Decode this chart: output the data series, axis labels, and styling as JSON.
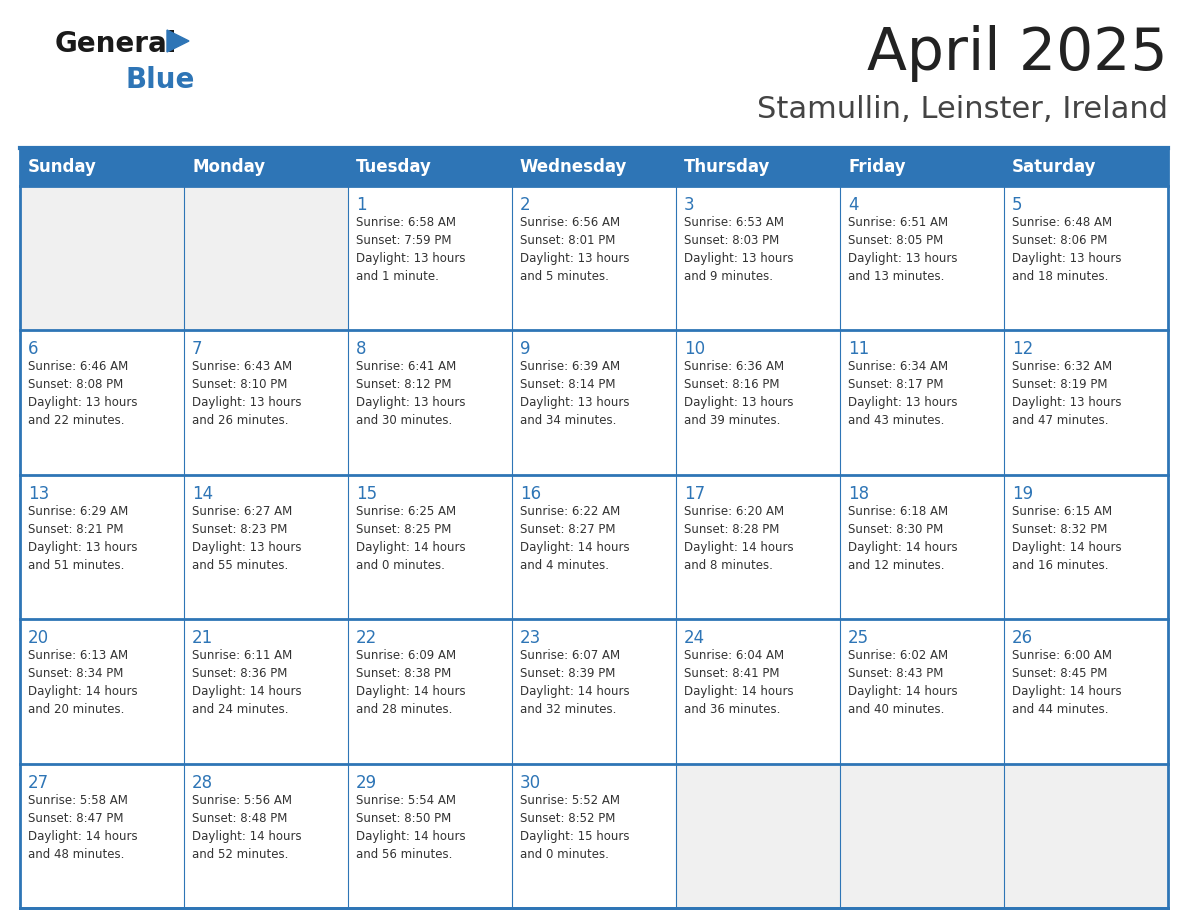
{
  "title": "April 2025",
  "subtitle": "Stamullin, Leinster, Ireland",
  "days_of_week": [
    "Sunday",
    "Monday",
    "Tuesday",
    "Wednesday",
    "Thursday",
    "Friday",
    "Saturday"
  ],
  "header_bg": "#2E75B6",
  "header_text_color": "#FFFFFF",
  "cell_bg_white": "#FFFFFF",
  "cell_bg_gray": "#F0F0F0",
  "cell_border_color": "#2E75B6",
  "day_number_color": "#2E75B6",
  "cell_text_color": "#333333",
  "title_color": "#222222",
  "subtitle_color": "#444444",
  "weeks": [
    [
      {
        "day": null,
        "text": ""
      },
      {
        "day": null,
        "text": ""
      },
      {
        "day": 1,
        "text": "Sunrise: 6:58 AM\nSunset: 7:59 PM\nDaylight: 13 hours\nand 1 minute."
      },
      {
        "day": 2,
        "text": "Sunrise: 6:56 AM\nSunset: 8:01 PM\nDaylight: 13 hours\nand 5 minutes."
      },
      {
        "day": 3,
        "text": "Sunrise: 6:53 AM\nSunset: 8:03 PM\nDaylight: 13 hours\nand 9 minutes."
      },
      {
        "day": 4,
        "text": "Sunrise: 6:51 AM\nSunset: 8:05 PM\nDaylight: 13 hours\nand 13 minutes."
      },
      {
        "day": 5,
        "text": "Sunrise: 6:48 AM\nSunset: 8:06 PM\nDaylight: 13 hours\nand 18 minutes."
      }
    ],
    [
      {
        "day": 6,
        "text": "Sunrise: 6:46 AM\nSunset: 8:08 PM\nDaylight: 13 hours\nand 22 minutes."
      },
      {
        "day": 7,
        "text": "Sunrise: 6:43 AM\nSunset: 8:10 PM\nDaylight: 13 hours\nand 26 minutes."
      },
      {
        "day": 8,
        "text": "Sunrise: 6:41 AM\nSunset: 8:12 PM\nDaylight: 13 hours\nand 30 minutes."
      },
      {
        "day": 9,
        "text": "Sunrise: 6:39 AM\nSunset: 8:14 PM\nDaylight: 13 hours\nand 34 minutes."
      },
      {
        "day": 10,
        "text": "Sunrise: 6:36 AM\nSunset: 8:16 PM\nDaylight: 13 hours\nand 39 minutes."
      },
      {
        "day": 11,
        "text": "Sunrise: 6:34 AM\nSunset: 8:17 PM\nDaylight: 13 hours\nand 43 minutes."
      },
      {
        "day": 12,
        "text": "Sunrise: 6:32 AM\nSunset: 8:19 PM\nDaylight: 13 hours\nand 47 minutes."
      }
    ],
    [
      {
        "day": 13,
        "text": "Sunrise: 6:29 AM\nSunset: 8:21 PM\nDaylight: 13 hours\nand 51 minutes."
      },
      {
        "day": 14,
        "text": "Sunrise: 6:27 AM\nSunset: 8:23 PM\nDaylight: 13 hours\nand 55 minutes."
      },
      {
        "day": 15,
        "text": "Sunrise: 6:25 AM\nSunset: 8:25 PM\nDaylight: 14 hours\nand 0 minutes."
      },
      {
        "day": 16,
        "text": "Sunrise: 6:22 AM\nSunset: 8:27 PM\nDaylight: 14 hours\nand 4 minutes."
      },
      {
        "day": 17,
        "text": "Sunrise: 6:20 AM\nSunset: 8:28 PM\nDaylight: 14 hours\nand 8 minutes."
      },
      {
        "day": 18,
        "text": "Sunrise: 6:18 AM\nSunset: 8:30 PM\nDaylight: 14 hours\nand 12 minutes."
      },
      {
        "day": 19,
        "text": "Sunrise: 6:15 AM\nSunset: 8:32 PM\nDaylight: 14 hours\nand 16 minutes."
      }
    ],
    [
      {
        "day": 20,
        "text": "Sunrise: 6:13 AM\nSunset: 8:34 PM\nDaylight: 14 hours\nand 20 minutes."
      },
      {
        "day": 21,
        "text": "Sunrise: 6:11 AM\nSunset: 8:36 PM\nDaylight: 14 hours\nand 24 minutes."
      },
      {
        "day": 22,
        "text": "Sunrise: 6:09 AM\nSunset: 8:38 PM\nDaylight: 14 hours\nand 28 minutes."
      },
      {
        "day": 23,
        "text": "Sunrise: 6:07 AM\nSunset: 8:39 PM\nDaylight: 14 hours\nand 32 minutes."
      },
      {
        "day": 24,
        "text": "Sunrise: 6:04 AM\nSunset: 8:41 PM\nDaylight: 14 hours\nand 36 minutes."
      },
      {
        "day": 25,
        "text": "Sunrise: 6:02 AM\nSunset: 8:43 PM\nDaylight: 14 hours\nand 40 minutes."
      },
      {
        "day": 26,
        "text": "Sunrise: 6:00 AM\nSunset: 8:45 PM\nDaylight: 14 hours\nand 44 minutes."
      }
    ],
    [
      {
        "day": 27,
        "text": "Sunrise: 5:58 AM\nSunset: 8:47 PM\nDaylight: 14 hours\nand 48 minutes."
      },
      {
        "day": 28,
        "text": "Sunrise: 5:56 AM\nSunset: 8:48 PM\nDaylight: 14 hours\nand 52 minutes."
      },
      {
        "day": 29,
        "text": "Sunrise: 5:54 AM\nSunset: 8:50 PM\nDaylight: 14 hours\nand 56 minutes."
      },
      {
        "day": 30,
        "text": "Sunrise: 5:52 AM\nSunset: 8:52 PM\nDaylight: 15 hours\nand 0 minutes."
      },
      {
        "day": null,
        "text": ""
      },
      {
        "day": null,
        "text": ""
      },
      {
        "day": null,
        "text": ""
      }
    ]
  ]
}
